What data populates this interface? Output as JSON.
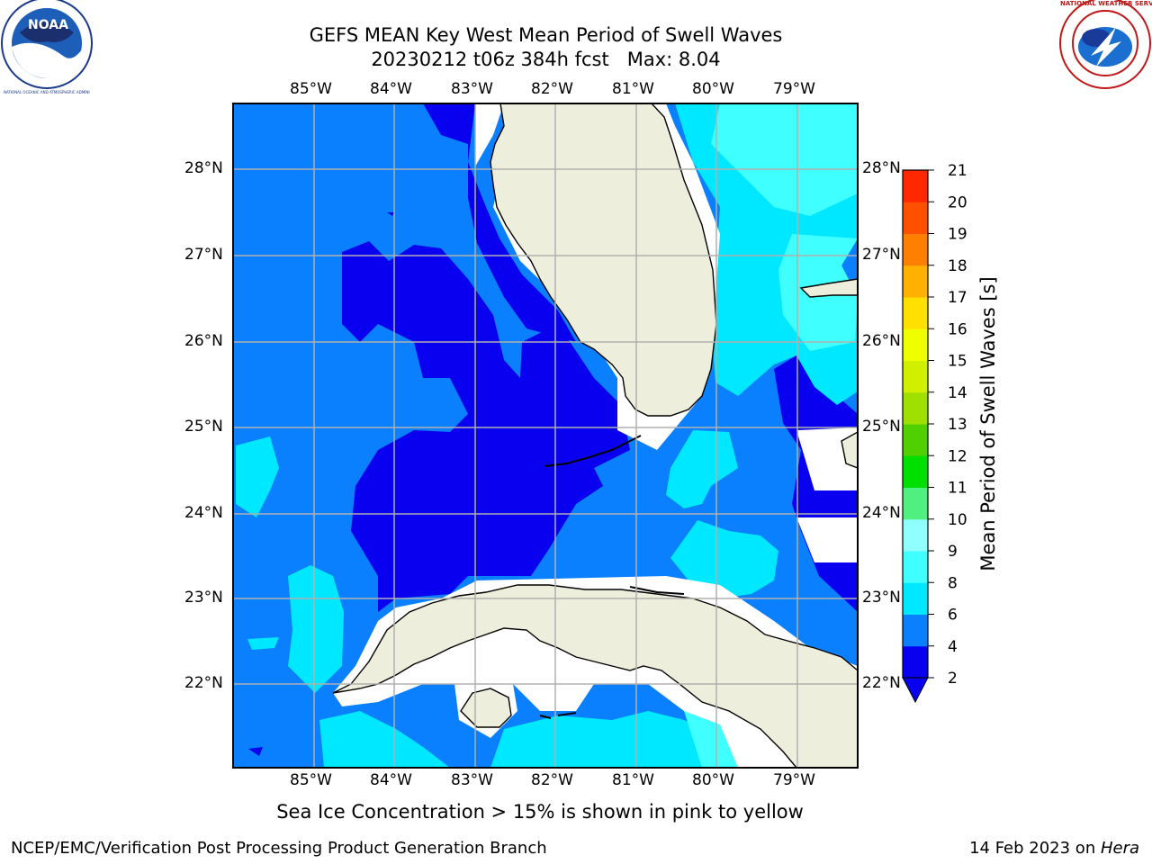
{
  "title": {
    "line1": "GEFS MEAN Key West Mean Period of Swell Waves",
    "line2": "20230212 t06z 384h fcst   Max: 8.04"
  },
  "logos": {
    "left_text": "NOAA",
    "left_ring_text": "NATIONAL OCEANIC AND ATMOSPHERIC ADMINISTRATION · U.S. DEPARTMENT OF COMMERCE",
    "right_ring_text": "NATIONAL WEATHER SERVICE"
  },
  "map": {
    "lon_labels": [
      "85°W",
      "84°W",
      "83°W",
      "82°W",
      "81°W",
      "80°W",
      "79°W"
    ],
    "lat_labels": [
      "28°N",
      "27°N",
      "26°N",
      "25°N",
      "24°N",
      "23°N",
      "22°N"
    ]
  },
  "colorbar": {
    "label": "Mean Period of Swell Waves [s]",
    "ticks": [
      "2",
      "4",
      "6",
      "8",
      "9",
      "10",
      "11",
      "12",
      "13",
      "14",
      "15",
      "16",
      "17",
      "18",
      "19",
      "20",
      "21"
    ],
    "colors": [
      "#0a00f0",
      "#0a80ff",
      "#00e8ff",
      "#40ffff",
      "#90ffff",
      "#50f080",
      "#00e000",
      "#50d000",
      "#a0e000",
      "#d0f000",
      "#f0ff00",
      "#ffe000",
      "#ffb000",
      "#ff8000",
      "#ff5000",
      "#ff2800",
      "#ff0000"
    ]
  },
  "footer": {
    "note": "Sea Ice Concentration > 15% is shown in pink to yellow",
    "left": "NCEP/EMC/Verification Post Processing Product Generation Branch",
    "right_prefix": "14 Feb 2023 on ",
    "right_host": "Hera"
  },
  "palette": {
    "deep": "#0a00f0",
    "mid": "#0a80ff",
    "light": "#00e8ff",
    "pale": "#40ffff",
    "land": "#eeeedc",
    "grid": "#b0b0b0"
  }
}
